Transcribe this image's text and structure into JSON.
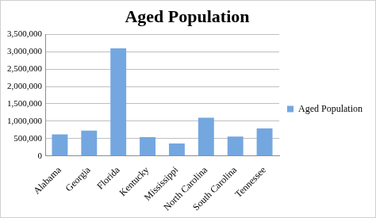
{
  "chart_data": {
    "type": "bar",
    "title": "Aged Population",
    "categories": [
      "Alabama",
      "Georgia",
      "Florida",
      "Kentucky",
      "Mississippi",
      "North Carolina",
      "South Carolina",
      "Tennessee"
    ],
    "series": [
      {
        "name": "Aged Population",
        "color": "#74a7e0",
        "values": [
          620000,
          730000,
          3100000,
          540000,
          360000,
          1100000,
          560000,
          790000
        ]
      }
    ],
    "ylim": [
      0,
      3500000
    ],
    "yticks": [
      0,
      {
        "value": 500000,
        "label": "500,000"
      },
      {
        "value": 1000000,
        "label": "1,000,000"
      },
      {
        "value": 1500000,
        "label": "1,500,000"
      },
      {
        "value": 2000000,
        "label": "2,000,000"
      },
      {
        "value": 2500000,
        "label": "2,500,000"
      },
      {
        "value": 3000000,
        "label": "3,000,000"
      },
      {
        "value": 3500000,
        "label": "3,500,000"
      }
    ],
    "grid": true,
    "legend": "right"
  }
}
